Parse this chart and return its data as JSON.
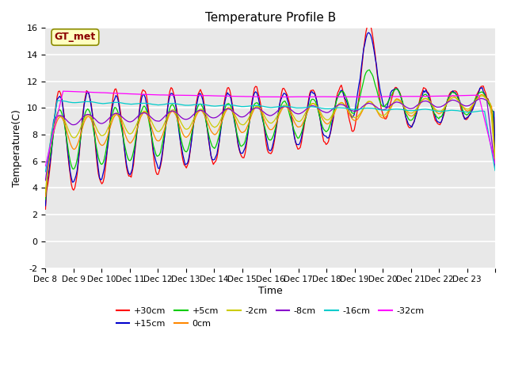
{
  "title": "Temperature Profile B",
  "xlabel": "Time",
  "ylabel": "Temperature(C)",
  "ylim": [
    -2,
    16
  ],
  "yticks": [
    -2,
    0,
    2,
    4,
    6,
    8,
    10,
    12,
    14,
    16
  ],
  "x_tick_positions": [
    0,
    1,
    2,
    3,
    4,
    5,
    6,
    7,
    8,
    9,
    10,
    11,
    12,
    13,
    14,
    15,
    16
  ],
  "x_labels": [
    "Dec 8",
    "Dec 9",
    "Dec 10",
    "Dec 11",
    "Dec 12",
    "Dec 13",
    "Dec 14",
    "Dec 15",
    "Dec 16",
    "Dec 17",
    "Dec 18",
    "Dec 19",
    "Dec 20",
    "Dec 21",
    "Dec 22",
    "Dec 23",
    ""
  ],
  "num_days": 16,
  "points_per_day": 24,
  "series": [
    {
      "label": "+30cm",
      "color": "#ff0000"
    },
    {
      "label": "+15cm",
      "color": "#0000cc"
    },
    {
      "label": "+5cm",
      "color": "#00cc00"
    },
    {
      "label": "0cm",
      "color": "#ff8800"
    },
    {
      "label": "-2cm",
      "color": "#cccc00"
    },
    {
      "label": "-8cm",
      "color": "#8800cc"
    },
    {
      "label": "-16cm",
      "color": "#00cccc"
    },
    {
      "label": "-32cm",
      "color": "#ff00ff"
    }
  ],
  "gt_met_label": "GT_met",
  "plot_bg_color": "#e8e8e8"
}
